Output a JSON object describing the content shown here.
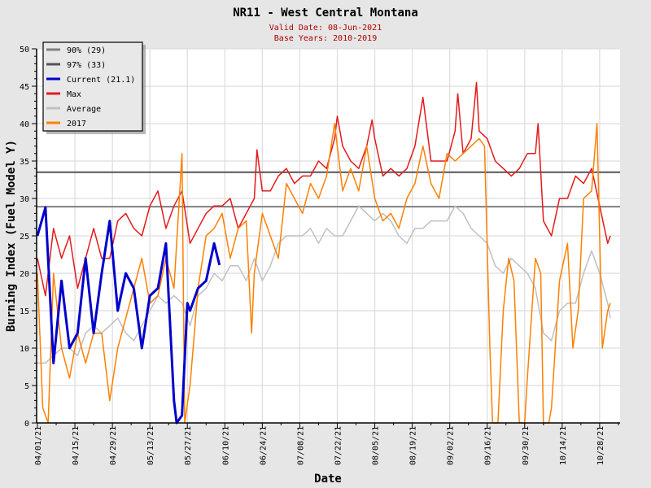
{
  "chart_data": {
    "type": "line",
    "title": "NR11 - West Central Montana",
    "subtitle_lines": [
      "Valid Date: 08-Jun-2021",
      "Base Years: 2010-2019"
    ],
    "xlabel": "Date",
    "ylabel": "Burning Index (Fuel Model Y)",
    "ylim": [
      0,
      50
    ],
    "yticks": [
      0,
      5,
      10,
      15,
      20,
      25,
      30,
      35,
      40,
      45,
      50
    ],
    "x_unit": "days since 04/01/21",
    "xlim": [
      0,
      214
    ],
    "xtick_days": [
      0,
      14,
      28,
      42,
      56,
      70,
      84,
      98,
      112,
      126,
      140,
      154,
      168,
      182,
      196,
      210
    ],
    "xtick_labels": [
      "04/01/21",
      "04/15/21",
      "04/29/21",
      "05/13/21",
      "05/27/21",
      "06/10/21",
      "06/24/21",
      "07/08/21",
      "07/22/21",
      "08/05/21",
      "08/19/21",
      "09/02/21",
      "09/16/21",
      "09/30/21",
      "10/14/21",
      "10/28/21"
    ],
    "grid": true,
    "legend_position": "top-left",
    "thresholds": [
      {
        "name": "90% (29)",
        "value": 28.9,
        "color": "#808080"
      },
      {
        "name": "97% (33)",
        "value": 33.5,
        "color": "#555555"
      }
    ],
    "series": [
      {
        "name": "Average",
        "color": "#c0c0c0",
        "width": 1.5,
        "points": [
          [
            0,
            8
          ],
          [
            3,
            8
          ],
          [
            6,
            9
          ],
          [
            9,
            10
          ],
          [
            12,
            10
          ],
          [
            15,
            9
          ],
          [
            18,
            12
          ],
          [
            21,
            13
          ],
          [
            24,
            12
          ],
          [
            27,
            13
          ],
          [
            30,
            14
          ],
          [
            33,
            12
          ],
          [
            36,
            11
          ],
          [
            39,
            13
          ],
          [
            42,
            15
          ],
          [
            45,
            17
          ],
          [
            48,
            16
          ],
          [
            51,
            17
          ],
          [
            54,
            16
          ],
          [
            57,
            13
          ],
          [
            60,
            17
          ],
          [
            63,
            18
          ],
          [
            66,
            20
          ],
          [
            69,
            19
          ],
          [
            72,
            21
          ],
          [
            75,
            21
          ],
          [
            78,
            19
          ],
          [
            81,
            22
          ],
          [
            84,
            19
          ],
          [
            87,
            21
          ],
          [
            90,
            24
          ],
          [
            93,
            25
          ],
          [
            96,
            25
          ],
          [
            99,
            25
          ],
          [
            102,
            26
          ],
          [
            105,
            24
          ],
          [
            108,
            26
          ],
          [
            111,
            25
          ],
          [
            114,
            25
          ],
          [
            117,
            27
          ],
          [
            120,
            29
          ],
          [
            123,
            28
          ],
          [
            126,
            27
          ],
          [
            129,
            28
          ],
          [
            132,
            27
          ],
          [
            135,
            25
          ],
          [
            138,
            24
          ],
          [
            141,
            26
          ],
          [
            144,
            26
          ],
          [
            147,
            27
          ],
          [
            150,
            27
          ],
          [
            153,
            27
          ],
          [
            156,
            29
          ],
          [
            159,
            28
          ],
          [
            162,
            26
          ],
          [
            165,
            25
          ],
          [
            168,
            24
          ],
          [
            171,
            21
          ],
          [
            174,
            20
          ],
          [
            177,
            22
          ],
          [
            180,
            21
          ],
          [
            183,
            20
          ],
          [
            186,
            18
          ],
          [
            189,
            12
          ],
          [
            192,
            11
          ],
          [
            195,
            15
          ],
          [
            198,
            16
          ],
          [
            201,
            16
          ],
          [
            204,
            20
          ],
          [
            207,
            23
          ],
          [
            210,
            20
          ],
          [
            213,
            16
          ],
          [
            214,
            14
          ]
        ]
      },
      {
        "name": "Max",
        "color": "#e31a1c",
        "width": 1.5,
        "points": [
          [
            0,
            22
          ],
          [
            3,
            17
          ],
          [
            6,
            26
          ],
          [
            9,
            22
          ],
          [
            12,
            25
          ],
          [
            15,
            18
          ],
          [
            18,
            22
          ],
          [
            21,
            26
          ],
          [
            24,
            22
          ],
          [
            27,
            22
          ],
          [
            30,
            27
          ],
          [
            33,
            28
          ],
          [
            36,
            26
          ],
          [
            39,
            25
          ],
          [
            42,
            29
          ],
          [
            45,
            31
          ],
          [
            48,
            26
          ],
          [
            51,
            29
          ],
          [
            54,
            31
          ],
          [
            57,
            24
          ],
          [
            60,
            26
          ],
          [
            63,
            28
          ],
          [
            66,
            29
          ],
          [
            69,
            29
          ],
          [
            72,
            30
          ],
          [
            75,
            26
          ],
          [
            78,
            28
          ],
          [
            81,
            30
          ],
          [
            82,
            36.5
          ],
          [
            84,
            31
          ],
          [
            87,
            31
          ],
          [
            90,
            33
          ],
          [
            93,
            34
          ],
          [
            96,
            32
          ],
          [
            99,
            33
          ],
          [
            102,
            33
          ],
          [
            105,
            35
          ],
          [
            108,
            34
          ],
          [
            111,
            38
          ],
          [
            112,
            41
          ],
          [
            114,
            37
          ],
          [
            117,
            35
          ],
          [
            120,
            34
          ],
          [
            123,
            37
          ],
          [
            125,
            40.5
          ],
          [
            126,
            38
          ],
          [
            129,
            33
          ],
          [
            132,
            34
          ],
          [
            135,
            33
          ],
          [
            138,
            34
          ],
          [
            141,
            37
          ],
          [
            144,
            43.5
          ],
          [
            147,
            35
          ],
          [
            150,
            35
          ],
          [
            153,
            35
          ],
          [
            156,
            39
          ],
          [
            157,
            44
          ],
          [
            159,
            36
          ],
          [
            162,
            38
          ],
          [
            164,
            45.5
          ],
          [
            165,
            39
          ],
          [
            168,
            38
          ],
          [
            171,
            35
          ],
          [
            174,
            34
          ],
          [
            177,
            33
          ],
          [
            180,
            34
          ],
          [
            183,
            36
          ],
          [
            186,
            36
          ],
          [
            187,
            40
          ],
          [
            189,
            27
          ],
          [
            192,
            25
          ],
          [
            195,
            30
          ],
          [
            198,
            30
          ],
          [
            201,
            33
          ],
          [
            204,
            32
          ],
          [
            207,
            34
          ],
          [
            210,
            29
          ],
          [
            213,
            24
          ],
          [
            214,
            25
          ]
        ]
      },
      {
        "name": "2017",
        "color": "#ff8000",
        "width": 1.5,
        "points": [
          [
            0,
            20
          ],
          [
            2,
            2
          ],
          [
            4,
            0
          ],
          [
            6,
            20
          ],
          [
            9,
            10
          ],
          [
            12,
            6
          ],
          [
            15,
            12
          ],
          [
            18,
            8
          ],
          [
            21,
            12
          ],
          [
            24,
            12
          ],
          [
            27,
            3
          ],
          [
            30,
            10
          ],
          [
            33,
            14
          ],
          [
            36,
            18
          ],
          [
            39,
            22
          ],
          [
            42,
            16
          ],
          [
            45,
            17
          ],
          [
            48,
            22
          ],
          [
            51,
            18
          ],
          [
            54,
            36
          ],
          [
            55,
            0
          ],
          [
            57,
            5
          ],
          [
            60,
            18
          ],
          [
            63,
            25
          ],
          [
            66,
            26
          ],
          [
            69,
            28
          ],
          [
            72,
            22
          ],
          [
            75,
            26
          ],
          [
            78,
            27
          ],
          [
            80,
            12
          ],
          [
            81,
            20
          ],
          [
            84,
            28
          ],
          [
            87,
            25
          ],
          [
            90,
            22
          ],
          [
            93,
            32
          ],
          [
            96,
            30
          ],
          [
            99,
            28
          ],
          [
            102,
            32
          ],
          [
            105,
            30
          ],
          [
            108,
            33
          ],
          [
            111,
            40
          ],
          [
            114,
            31
          ],
          [
            117,
            34
          ],
          [
            120,
            31
          ],
          [
            123,
            37
          ],
          [
            126,
            30
          ],
          [
            129,
            27
          ],
          [
            132,
            28
          ],
          [
            135,
            26
          ],
          [
            138,
            30
          ],
          [
            141,
            32
          ],
          [
            144,
            37
          ],
          [
            147,
            32
          ],
          [
            150,
            30
          ],
          [
            153,
            36
          ],
          [
            156,
            35
          ],
          [
            159,
            36
          ],
          [
            162,
            37
          ],
          [
            165,
            38
          ],
          [
            167,
            37
          ],
          [
            169,
            10
          ],
          [
            170,
            0
          ],
          [
            172,
            0
          ],
          [
            174,
            15
          ],
          [
            176,
            22
          ],
          [
            178,
            19
          ],
          [
            180,
            0
          ],
          [
            182,
            0
          ],
          [
            183,
            6
          ],
          [
            186,
            22
          ],
          [
            188,
            20
          ],
          [
            189,
            0
          ],
          [
            191,
            0
          ],
          [
            192,
            2
          ],
          [
            195,
            19
          ],
          [
            198,
            24
          ],
          [
            200,
            10
          ],
          [
            202,
            15
          ],
          [
            204,
            30
          ],
          [
            207,
            31
          ],
          [
            209,
            40
          ],
          [
            210,
            25
          ],
          [
            211,
            10
          ],
          [
            213,
            15
          ],
          [
            214,
            16
          ]
        ]
      },
      {
        "name": "Current (21.1)",
        "color": "#0000cc",
        "width": 3,
        "points": [
          [
            0,
            25
          ],
          [
            3,
            28.8
          ],
          [
            6,
            8
          ],
          [
            9,
            19
          ],
          [
            12,
            10
          ],
          [
            15,
            12
          ],
          [
            18,
            22
          ],
          [
            21,
            12
          ],
          [
            24,
            20
          ],
          [
            27,
            27
          ],
          [
            30,
            15
          ],
          [
            33,
            20
          ],
          [
            36,
            18
          ],
          [
            39,
            10
          ],
          [
            42,
            17
          ],
          [
            45,
            18
          ],
          [
            48,
            24
          ],
          [
            51,
            3
          ],
          [
            52,
            0
          ],
          [
            54,
            1
          ],
          [
            56,
            16
          ],
          [
            57,
            15
          ],
          [
            60,
            18
          ],
          [
            63,
            19
          ],
          [
            66,
            24
          ],
          [
            68,
            21.1
          ]
        ]
      }
    ]
  }
}
